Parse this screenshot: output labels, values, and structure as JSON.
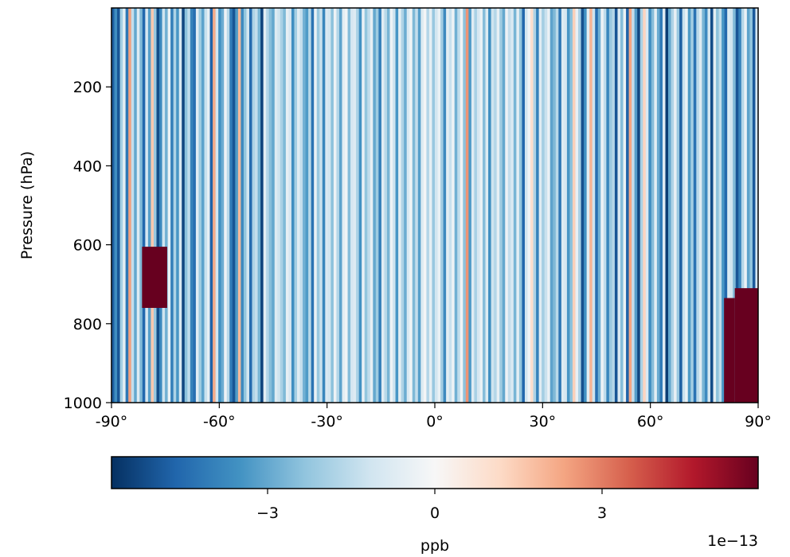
{
  "chart_data": {
    "type": "heatmap",
    "xlabel": "",
    "ylabel": "Pressure (hPa)",
    "x_range": [
      -90,
      90
    ],
    "y_range": [
      1000,
      0
    ],
    "y_inverted": true,
    "x_ticks": [
      {
        "value": -90,
        "label": "-90°"
      },
      {
        "value": -60,
        "label": "-60°"
      },
      {
        "value": -30,
        "label": "-30°"
      },
      {
        "value": 0,
        "label": "0°"
      },
      {
        "value": 30,
        "label": "30°"
      },
      {
        "value": 60,
        "label": "60°"
      },
      {
        "value": 90,
        "label": "90°"
      }
    ],
    "y_ticks": [
      {
        "value": 200,
        "label": "200"
      },
      {
        "value": 400,
        "label": "400"
      },
      {
        "value": 600,
        "label": "600"
      },
      {
        "value": 800,
        "label": "800"
      },
      {
        "value": 1000,
        "label": "1000"
      }
    ],
    "colormap": "RdBu_r",
    "vmin": -5.8e-13,
    "vmax": 5.8e-13,
    "column_values_x1e13": [
      -4.8,
      -3.6,
      -5.0,
      -2.0,
      -0.6,
      -4.2,
      2.4,
      -1.4,
      -3.0,
      -0.8,
      -2.6,
      -4.6,
      -1.0,
      -3.2,
      1.6,
      -2.2,
      -5.2,
      -3.8,
      -1.2,
      -2.8,
      -0.4,
      -4.0,
      -1.8,
      -3.4,
      -0.9,
      -5.3,
      -2.4,
      -1.5,
      -3.9,
      -4.4,
      -0.7,
      -2.1,
      -3.1,
      -1.3,
      -0.5,
      -4.7,
      2.2,
      -1.1,
      -3.5,
      -2.9,
      -0.3,
      -1.6,
      -4.1,
      -5.0,
      -3.3,
      1.9,
      -3.7,
      -2.3,
      -1.1,
      -4.5,
      -1.8,
      -1.4,
      -2.7,
      -5.4,
      -0.6,
      -1.7,
      -2.5,
      -3.0,
      -0.8,
      -1.2,
      -1.9,
      -2.6,
      -0.5,
      -1.0,
      -3.6,
      -2.0,
      -0.7,
      -1.4,
      -2.8,
      -3.3,
      -1.6,
      -4.3,
      -0.4,
      -2.2,
      -1.3,
      -3.8,
      -0.9,
      -1.1,
      -2.4,
      -0.3,
      -1.7,
      -3.1,
      -0.6,
      -0.2,
      -2.5,
      -1.0,
      -0.8,
      -1.9,
      -3.5,
      -0.4,
      -2.3,
      -1.5,
      -0.5,
      -3.0,
      -2.1,
      -4.0,
      -0.7,
      -1.6,
      -2.7,
      -0.3,
      -1.2,
      -3.4,
      -0.6,
      -1.8,
      -2.9,
      -0.9,
      -0.2,
      -2.6,
      -1.4,
      -3.2,
      -0.8,
      -0.1,
      -1.7,
      -0.5,
      -2.2,
      -1.1,
      -0.4,
      -2.0,
      -3.7,
      -0.6,
      -1.3,
      -0.3,
      -2.8,
      -1.5,
      -0.2,
      -2.4,
      2.6,
      -3.3,
      -0.7,
      -1.9,
      -1.0,
      -0.4,
      -2.5,
      -0.8,
      -3.6,
      -1.2,
      -1.7,
      -0.5,
      -2.1,
      -3.0,
      -0.3,
      -1.4,
      -0.9,
      -2.7,
      -0.6,
      -2.3,
      -4.6,
      -1.1,
      -0.2,
      1.0,
      -1.8,
      -3.9,
      -0.7,
      -2.0,
      -1.3,
      -0.4,
      -3.1,
      -2.6,
      -1.6,
      -4.2,
      -0.8,
      -1.0,
      -3.4,
      -2.4,
      1.4,
      -0.5,
      -1.9,
      -5.1,
      -3.5,
      -0.6,
      2.0,
      -1.2,
      -4.4,
      -2.8,
      -0.3,
      -1.5,
      -3.8,
      -2.2,
      -1.7,
      -5.0,
      -0.9,
      -2.5,
      -0.4,
      -4.7,
      2.3,
      -1.4,
      -3.2,
      -5.3,
      -1.9,
      1.3,
      -0.9,
      -3.6,
      -2.5,
      -0.6,
      -2.9,
      -4.1,
      -0.7,
      -5.5,
      -3.0,
      -1.8,
      -0.5,
      -2.2,
      -4.8,
      -1.3,
      -0.4,
      -3.3,
      -2.0,
      -4.3,
      -1.6,
      -0.8,
      -2.7,
      -3.7,
      -1.1,
      -5.2,
      -0.6,
      -2.4,
      -1.5,
      -3.4,
      -4.6,
      -0.9,
      -1.2,
      -2.6,
      -5.0,
      -3.9,
      -1.7,
      -0.4,
      -3.1,
      -2.3,
      -4.9,
      -1.0
    ],
    "anomalies": [
      {
        "lon_range": [
          -81.5,
          -74.5
        ],
        "p_range": [
          605,
          760
        ],
        "value_x1e13": 6.0
      },
      {
        "lon_range": [
          80.5,
          83.5
        ],
        "p_range": [
          735,
          1000
        ],
        "value_x1e13": 6.0
      },
      {
        "lon_range": [
          83.5,
          90
        ],
        "p_range": [
          710,
          1000
        ],
        "value_x1e13": 6.0
      }
    ],
    "colorbar": {
      "label": "ppb",
      "multiplier": "1e−13",
      "ticks": [
        {
          "value": -3,
          "label": "−3"
        },
        {
          "value": 0,
          "label": "0"
        },
        {
          "value": 3,
          "label": "3"
        }
      ],
      "range": [
        -5.8,
        5.8
      ]
    }
  }
}
